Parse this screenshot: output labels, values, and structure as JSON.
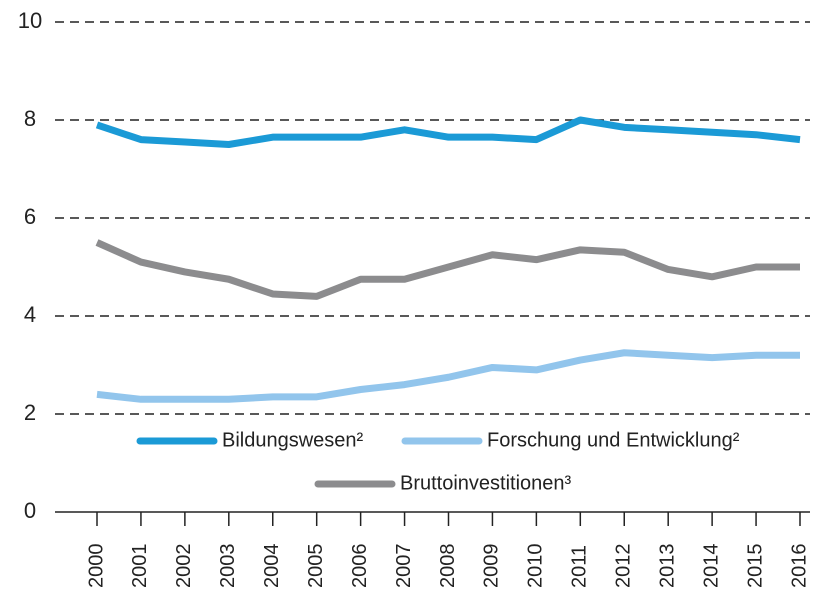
{
  "chart_data": {
    "type": "line",
    "categories": [
      "2000",
      "2001",
      "2002",
      "2003",
      "2004",
      "2005",
      "2006",
      "2007",
      "2008",
      "2009",
      "2010",
      "2011",
      "2012",
      "2013",
      "2014",
      "2015",
      "2016"
    ],
    "series": [
      {
        "name": "Bildungswesen²",
        "color": "#1b9ad6",
        "values": [
          7.9,
          7.6,
          7.55,
          7.5,
          7.65,
          7.65,
          7.65,
          7.8,
          7.65,
          7.65,
          7.6,
          8.0,
          7.85,
          7.8,
          7.75,
          7.7,
          7.6
        ]
      },
      {
        "name": "Forschung und Entwicklung²",
        "color": "#92c5ec",
        "values": [
          2.4,
          2.3,
          2.3,
          2.3,
          2.35,
          2.35,
          2.5,
          2.6,
          2.75,
          2.95,
          2.9,
          3.1,
          3.25,
          3.2,
          3.15,
          3.2,
          3.2
        ]
      },
      {
        "name": "Bruttoinvestitionen³",
        "color": "#8c8c8e",
        "values": [
          5.5,
          5.1,
          4.9,
          4.75,
          4.45,
          4.4,
          4.75,
          4.75,
          5.0,
          5.25,
          5.15,
          5.35,
          5.3,
          4.95,
          4.8,
          5.0,
          5.0
        ]
      }
    ],
    "ylim": [
      0,
      10
    ],
    "yticks": [
      0,
      2,
      4,
      6,
      8,
      10
    ],
    "grid": true
  }
}
